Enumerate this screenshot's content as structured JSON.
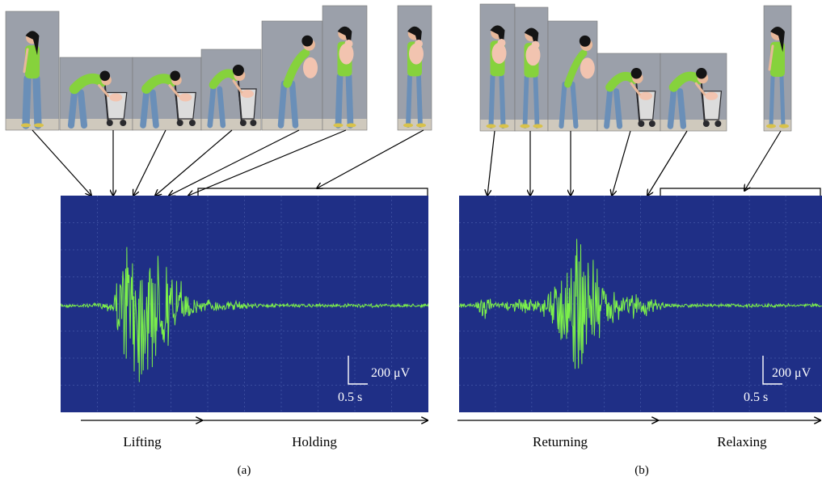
{
  "colors": {
    "scope_background": "#1f2f86",
    "grid_line": "#3a4c9e",
    "emg_trace": "#7cf04a",
    "wall": "#9ba0aa",
    "shirt": "#86d23c",
    "jeans": "#6a8fb8",
    "hair": "#141414",
    "skin": "#e8b89a",
    "baby": "#f2c4b0",
    "stroller": "#2a2a2e",
    "floor": "#cfc9bd"
  },
  "icons": {
    "photo_frame": "person-photo-icon",
    "stroller": "stroller-icon",
    "baby": "baby-doll-icon"
  },
  "panels": [
    {
      "id": "a",
      "caption": "(a)",
      "scale_bar": {
        "voltage": "200 μV",
        "time": "0.5 s"
      },
      "phases": [
        "Lifting",
        "Holding"
      ],
      "photo_poses": [
        "standing",
        "bending",
        "bending",
        "bending",
        "rising",
        "holding",
        "holding"
      ]
    },
    {
      "id": "b",
      "caption": "(b)",
      "scale_bar": {
        "voltage": "200 μV",
        "time": "0.5 s"
      },
      "phases": [
        "Returning",
        "Relaxing"
      ],
      "photo_poses": [
        "holding",
        "holding",
        "rising",
        "bending",
        "bending",
        "standing"
      ]
    }
  ]
}
